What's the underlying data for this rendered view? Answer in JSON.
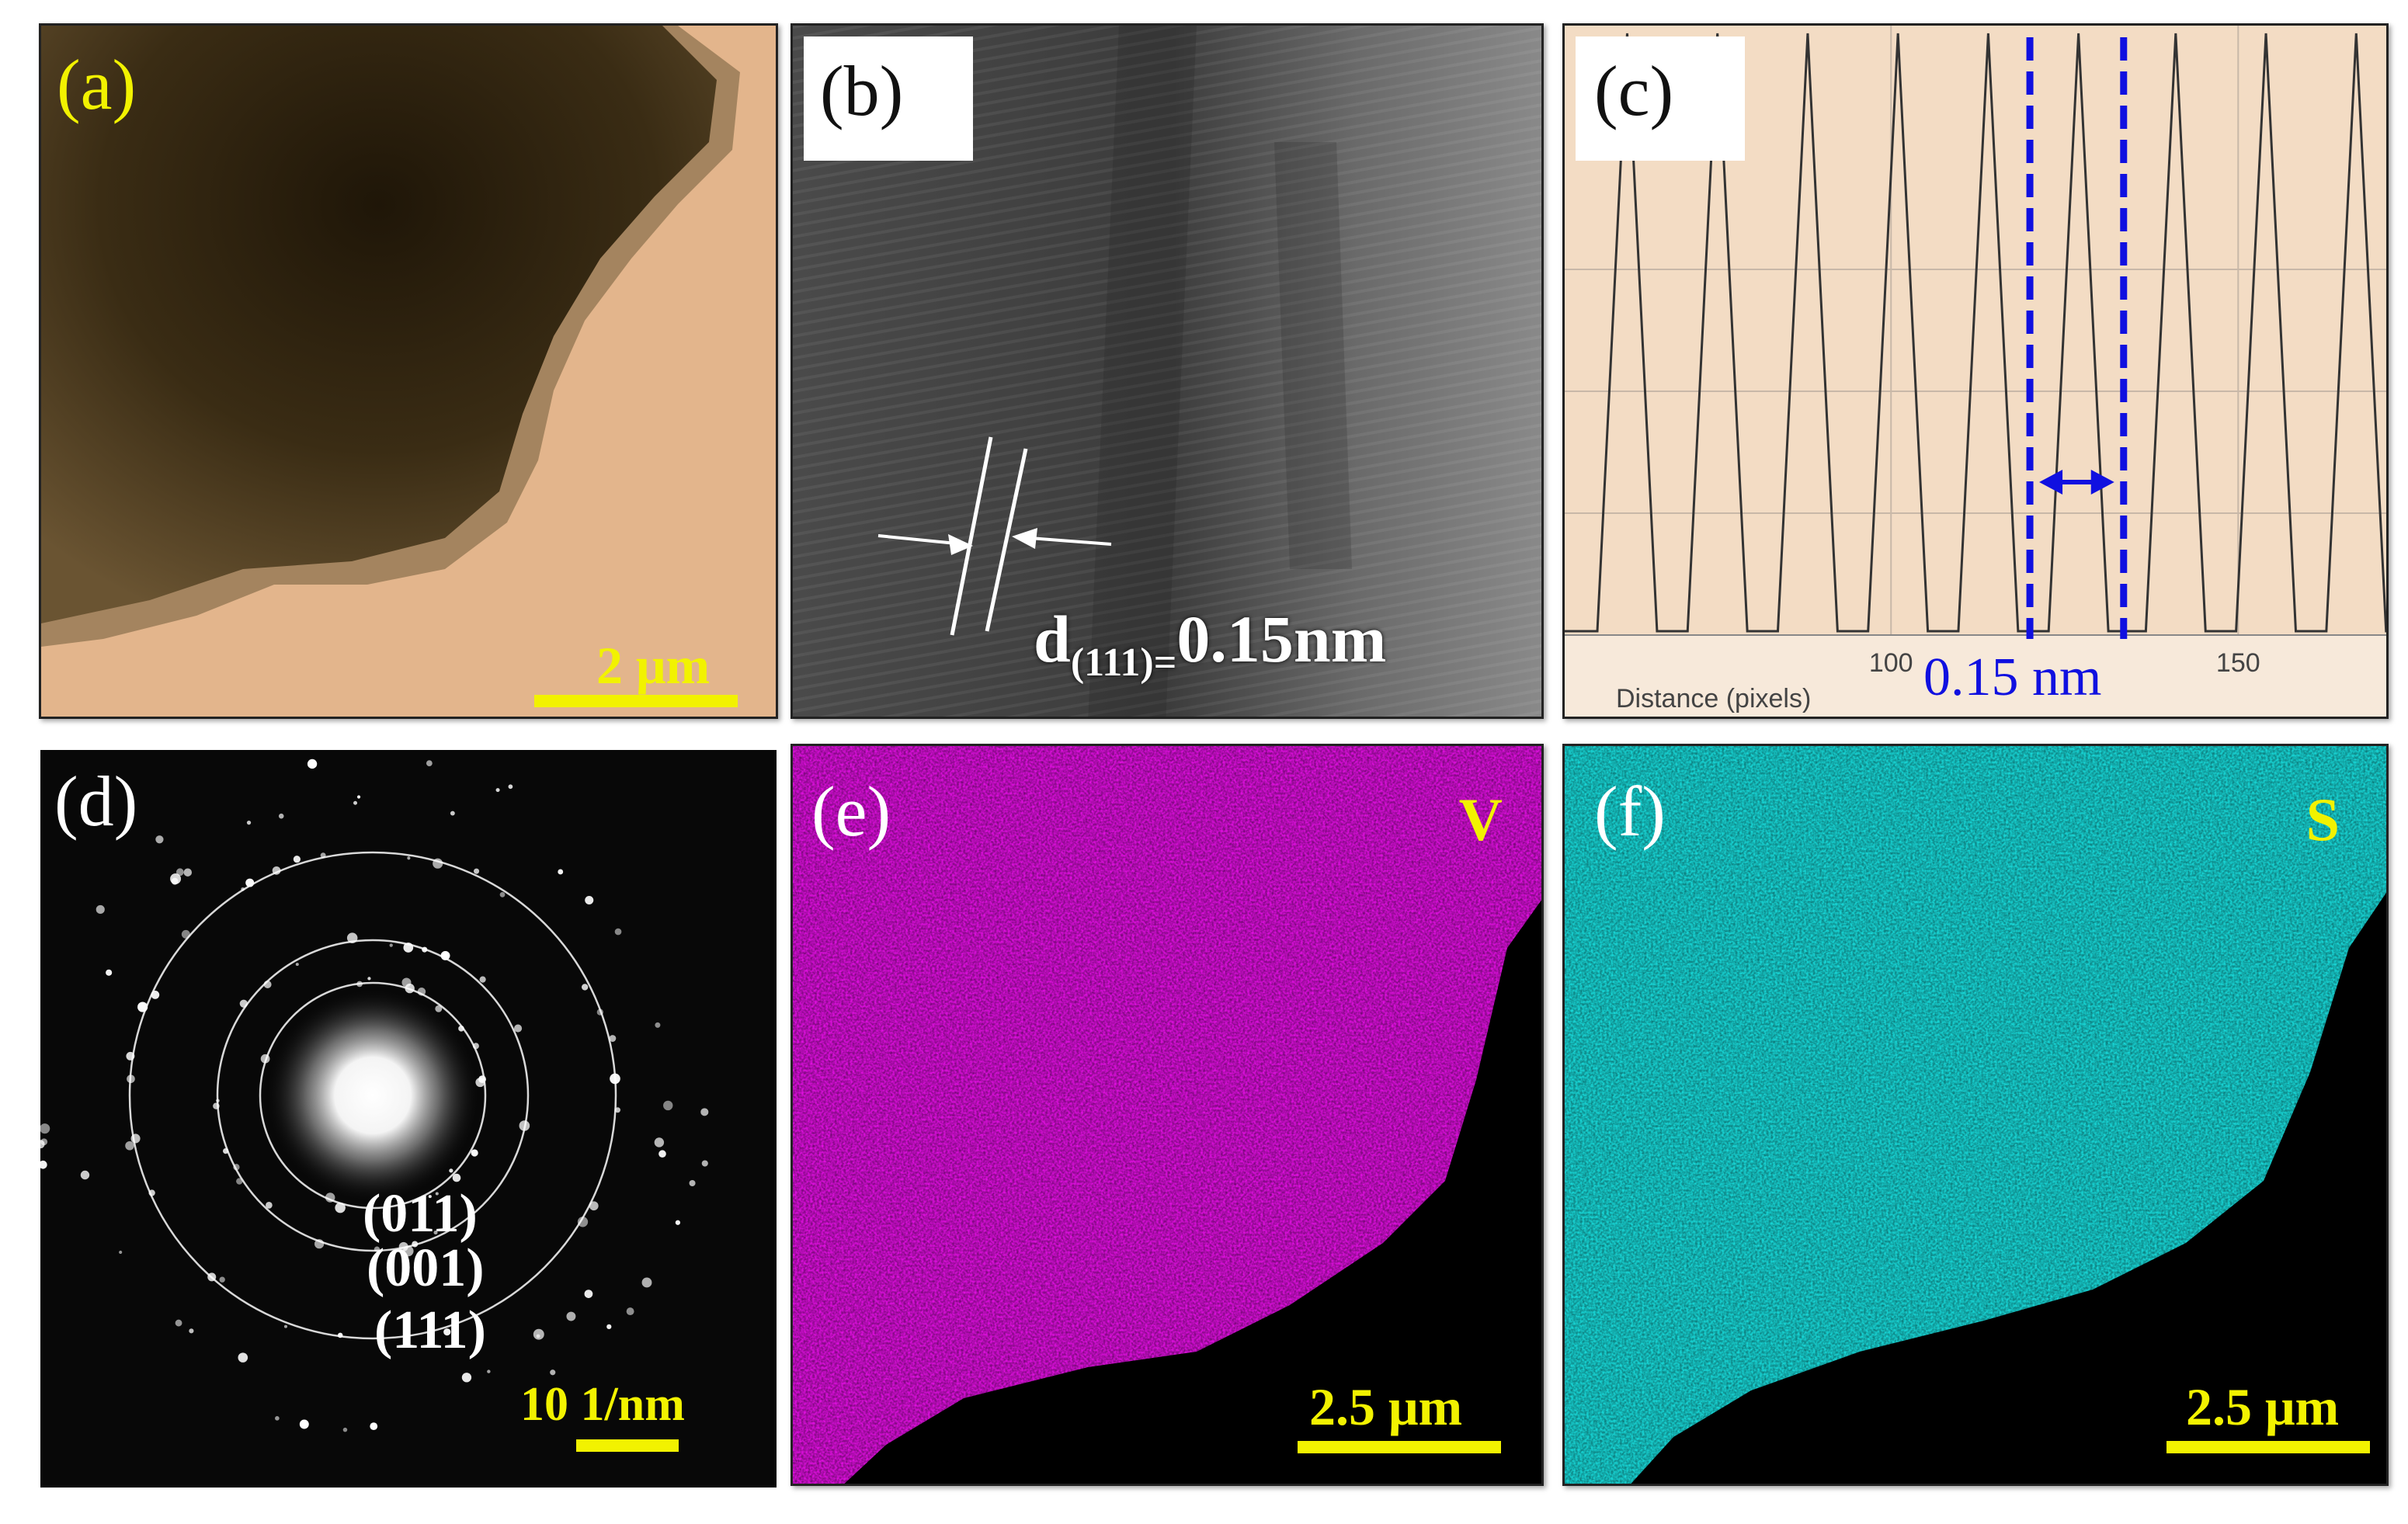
{
  "panels": {
    "a": {
      "label": "(a)",
      "scale_bar": "2 μm"
    },
    "b": {
      "label": "(b)",
      "d_prefix": "d",
      "d_sub": "(111)=",
      "d_value": "0.15nm"
    },
    "c": {
      "label": "(c)",
      "xlabel": "Distance (pixels)",
      "annotation": "0.15 nm"
    },
    "d": {
      "label": "(d)",
      "rings": [
        "(011)",
        "(001)",
        "(111)"
      ],
      "scale_bar": "10 1/nm"
    },
    "e": {
      "label": "(e)",
      "element": "V",
      "scale_bar": "2.5 μm"
    },
    "f": {
      "label": "(f)",
      "element": "S",
      "scale_bar": "2.5 μm"
    }
  },
  "colors": {
    "scale_bar": "#f2f200",
    "v_map": "#e010e0",
    "s_map": "#18d8d8",
    "marker": "#1010e0"
  },
  "chart_data": {
    "type": "line",
    "title": "",
    "xlabel": "Distance (pixels)",
    "ylabel": "",
    "xticks": [
      100,
      150
    ],
    "xlim": [
      53,
      172
    ],
    "ylim": [
      0,
      1
    ],
    "peaks_x": [
      62,
      75,
      88,
      101,
      114,
      127,
      141,
      154,
      167
    ],
    "markers_x": [
      120,
      133.5
    ],
    "annotation": "0.15 nm",
    "grid": true
  }
}
